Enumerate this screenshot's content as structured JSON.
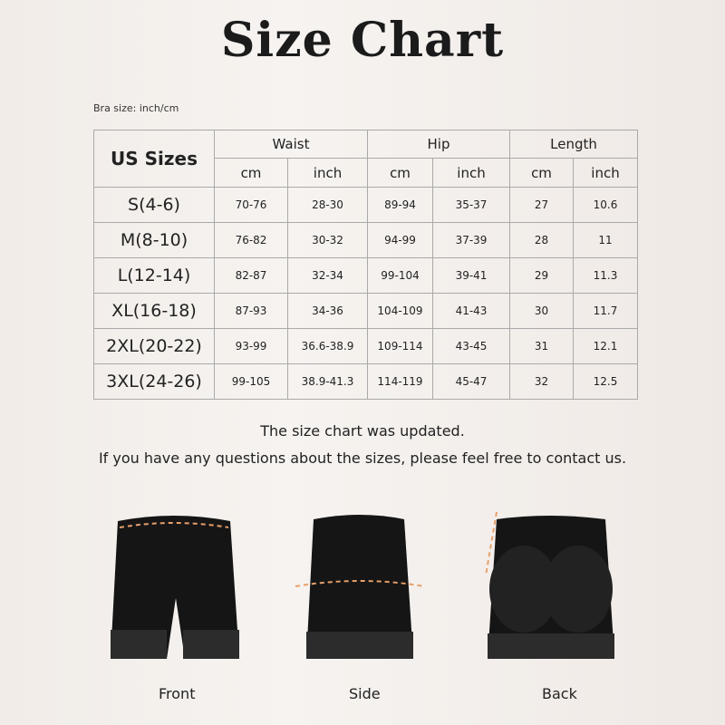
{
  "title": "Size Chart",
  "subtitle": "Bra size: inch/cm",
  "table": {
    "corner": "US Sizes",
    "groups": [
      "Waist",
      "Hip",
      "Length"
    ],
    "units": [
      "cm",
      "inch",
      "cm",
      "inch",
      "cm",
      "inch"
    ],
    "rows": [
      [
        "S(4-6)",
        "70-76",
        "28-30",
        "89-94",
        "35-37",
        "27",
        "10.6"
      ],
      [
        "M(8-10)",
        "76-82",
        "30-32",
        "94-99",
        "37-39",
        "28",
        "11"
      ],
      [
        "L(12-14)",
        "82-87",
        "32-34",
        "99-104",
        "39-41",
        "29",
        "11.3"
      ],
      [
        "XL(16-18)",
        "87-93",
        "34-36",
        "104-109",
        "41-43",
        "30",
        "11.7"
      ],
      [
        "2XL(20-22)",
        "93-99",
        "36.6-38.9",
        "109-114",
        "43-45",
        "31",
        "12.1"
      ],
      [
        "3XL(24-26)",
        "99-105",
        "38.9-41.3",
        "114-119",
        "45-47",
        "32",
        "12.5"
      ]
    ]
  },
  "notes": [
    "The size chart was updated.",
    "If you have any questions about the sizes, please feel free to contact us."
  ],
  "products": [
    {
      "label": "Front"
    },
    {
      "label": "Side"
    },
    {
      "label": "Back"
    }
  ],
  "colors": {
    "garment": "#151515",
    "measure_line": "#e8a06a"
  }
}
